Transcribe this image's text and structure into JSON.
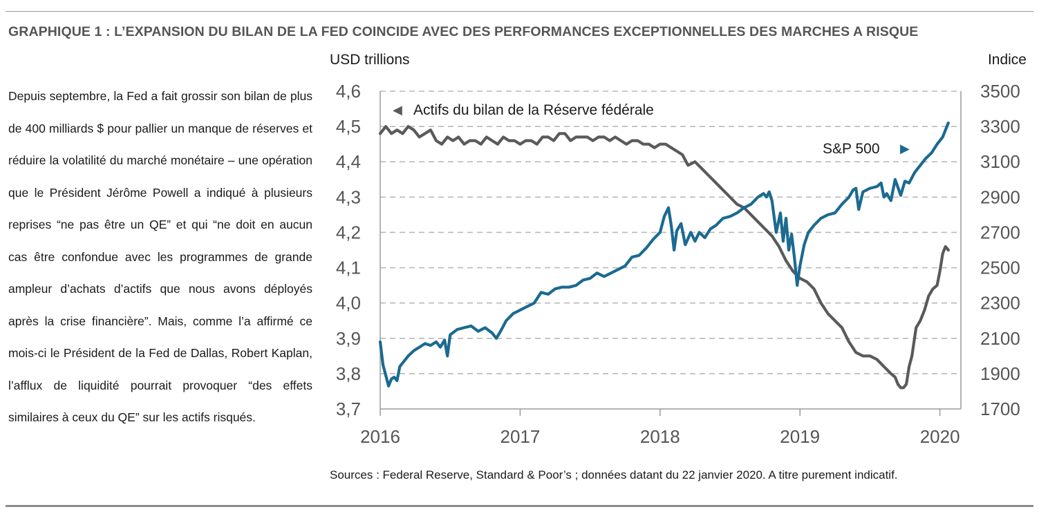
{
  "title": "GRAPHIQUE 1 : L’EXPANSION DU BILAN DE LA FED COINCIDE AVEC DES PERFORMANCES  EXCEPTIONNELLES DES MARCHES A RISQUE",
  "body_text": "Depuis septembre, la Fed a fait grossir son bilan de plus de 400 milliards $ pour pallier un manque de réserves et réduire la volatilité du marché monétaire – une opération que le Président Jérôme Powell a indiqué à plusieurs reprises “ne pas être un QE” et qui “ne doit en aucun cas être confondue avec les programmes de grande ampleur d’achats d’actifs que nous avons déployés après la crise financière”. Mais, comme l’a affirmé ce mois-ci le Président de la Fed de Dallas, Robert Kaplan, l’afflux de liquidité pourrait provoquer “des effets similaires à ceux du QE” sur les actifs risqués.",
  "source": "Sources : Federal Reserve, Standard & Poor’s ; données datant du 22 janvier 2020. A titre purement indicatif.",
  "chart_data": {
    "type": "line",
    "left_axis_label": "USD trillions",
    "right_axis_label": "Indice",
    "x_ticks": [
      "2016",
      "2017",
      "2018",
      "2019",
      "2020"
    ],
    "x_range": [
      2016.0,
      2020.15
    ],
    "y_left_ticks": [
      "4,6",
      "4,5",
      "4,4",
      "4,3",
      "4,2",
      "4,1",
      "4,0",
      "3,9",
      "3,8",
      "3,7"
    ],
    "y_left_range": [
      3.7,
      4.6
    ],
    "y_right_ticks": [
      "3500",
      "3300",
      "3100",
      "2900",
      "2700",
      "2500",
      "2300",
      "2100",
      "1900",
      "1700"
    ],
    "y_right_range": [
      1700,
      3500
    ],
    "grid": true,
    "series": [
      {
        "name": "Actifs du bilan de la Réserve fédérale",
        "axis": "left",
        "color": "#5a5a5a",
        "label": "Actifs du bilan de la Réserve fédérale",
        "label_marker": "◀",
        "x": [
          2016.0,
          2016.04,
          2016.08,
          2016.12,
          2016.16,
          2016.2,
          2016.24,
          2016.28,
          2016.32,
          2016.36,
          2016.4,
          2016.44,
          2016.48,
          2016.52,
          2016.56,
          2016.6,
          2016.64,
          2016.68,
          2016.72,
          2016.76,
          2016.8,
          2016.84,
          2016.88,
          2016.92,
          2016.96,
          2017.0,
          2017.04,
          2017.08,
          2017.12,
          2017.16,
          2017.2,
          2017.24,
          2017.28,
          2017.32,
          2017.36,
          2017.4,
          2017.44,
          2017.48,
          2017.52,
          2017.56,
          2017.6,
          2017.64,
          2017.68,
          2017.72,
          2017.76,
          2017.8,
          2017.84,
          2017.88,
          2017.92,
          2017.96,
          2018.0,
          2018.04,
          2018.08,
          2018.12,
          2018.16,
          2018.2,
          2018.25,
          2018.3,
          2018.35,
          2018.4,
          2018.45,
          2018.5,
          2018.55,
          2018.6,
          2018.65,
          2018.7,
          2018.75,
          2018.8,
          2018.85,
          2018.9,
          2018.95,
          2019.0,
          2019.05,
          2019.1,
          2019.15,
          2019.2,
          2019.25,
          2019.3,
          2019.35,
          2019.4,
          2019.45,
          2019.5,
          2019.55,
          2019.6,
          2019.65,
          2019.68,
          2019.7,
          2019.72,
          2019.74,
          2019.76,
          2019.78,
          2019.8,
          2019.83,
          2019.86,
          2019.89,
          2019.92,
          2019.95,
          2019.98,
          2020.0,
          2020.02,
          2020.04,
          2020.06
        ],
        "values": [
          4.48,
          4.5,
          4.48,
          4.49,
          4.48,
          4.5,
          4.49,
          4.47,
          4.48,
          4.49,
          4.46,
          4.45,
          4.47,
          4.46,
          4.47,
          4.45,
          4.46,
          4.46,
          4.45,
          4.47,
          4.46,
          4.45,
          4.47,
          4.46,
          4.46,
          4.45,
          4.46,
          4.46,
          4.45,
          4.47,
          4.47,
          4.46,
          4.48,
          4.48,
          4.46,
          4.47,
          4.47,
          4.47,
          4.46,
          4.47,
          4.47,
          4.46,
          4.47,
          4.46,
          4.45,
          4.46,
          4.46,
          4.45,
          4.45,
          4.44,
          4.45,
          4.45,
          4.44,
          4.43,
          4.42,
          4.39,
          4.4,
          4.38,
          4.36,
          4.34,
          4.32,
          4.3,
          4.28,
          4.27,
          4.25,
          4.23,
          4.21,
          4.19,
          4.16,
          4.12,
          4.09,
          4.07,
          4.06,
          4.04,
          4.0,
          3.97,
          3.95,
          3.93,
          3.89,
          3.86,
          3.85,
          3.85,
          3.84,
          3.82,
          3.8,
          3.79,
          3.77,
          3.76,
          3.76,
          3.77,
          3.82,
          3.85,
          3.93,
          3.95,
          3.98,
          4.02,
          4.04,
          4.05,
          4.09,
          4.14,
          4.16,
          4.15
        ]
      },
      {
        "name": "S&P 500",
        "axis": "right",
        "color": "#1b6a90",
        "label": "S&P 500",
        "label_marker": "▶",
        "x": [
          2016.0,
          2016.02,
          2016.04,
          2016.06,
          2016.08,
          2016.1,
          2016.12,
          2016.14,
          2016.16,
          2016.2,
          2016.24,
          2016.28,
          2016.32,
          2016.36,
          2016.4,
          2016.43,
          2016.46,
          2016.48,
          2016.5,
          2016.55,
          2016.6,
          2016.65,
          2016.7,
          2016.75,
          2016.8,
          2016.83,
          2016.86,
          2016.9,
          2016.95,
          2017.0,
          2017.05,
          2017.1,
          2017.15,
          2017.2,
          2017.25,
          2017.3,
          2017.35,
          2017.4,
          2017.45,
          2017.5,
          2017.55,
          2017.6,
          2017.65,
          2017.7,
          2017.75,
          2017.8,
          2017.85,
          2017.9,
          2017.95,
          2018.0,
          2018.03,
          2018.06,
          2018.08,
          2018.1,
          2018.12,
          2018.15,
          2018.18,
          2018.22,
          2018.25,
          2018.28,
          2018.32,
          2018.36,
          2018.4,
          2018.45,
          2018.5,
          2018.55,
          2018.6,
          2018.65,
          2018.7,
          2018.74,
          2018.76,
          2018.78,
          2018.8,
          2018.83,
          2018.86,
          2018.88,
          2018.9,
          2018.92,
          2018.94,
          2018.96,
          2018.98,
          2019.0,
          2019.03,
          2019.06,
          2019.1,
          2019.15,
          2019.2,
          2019.25,
          2019.3,
          2019.35,
          2019.38,
          2019.4,
          2019.42,
          2019.45,
          2019.5,
          2019.55,
          2019.58,
          2019.6,
          2019.62,
          2019.65,
          2019.68,
          2019.72,
          2019.75,
          2019.78,
          2019.82,
          2019.86,
          2019.9,
          2019.94,
          2019.98,
          2020.02,
          2020.06
        ],
        "values": [
          2080,
          1950,
          1890,
          1830,
          1870,
          1880,
          1860,
          1940,
          1960,
          2000,
          2030,
          2050,
          2070,
          2060,
          2080,
          2050,
          2090,
          2000,
          2120,
          2150,
          2160,
          2170,
          2140,
          2160,
          2130,
          2100,
          2140,
          2200,
          2240,
          2260,
          2280,
          2300,
          2360,
          2350,
          2380,
          2390,
          2390,
          2400,
          2430,
          2440,
          2470,
          2450,
          2470,
          2490,
          2510,
          2560,
          2570,
          2610,
          2660,
          2700,
          2790,
          2840,
          2740,
          2600,
          2710,
          2750,
          2630,
          2700,
          2650,
          2700,
          2670,
          2720,
          2740,
          2780,
          2790,
          2810,
          2840,
          2860,
          2900,
          2920,
          2900,
          2930,
          2880,
          2700,
          2810,
          2650,
          2780,
          2600,
          2690,
          2560,
          2400,
          2510,
          2630,
          2700,
          2740,
          2780,
          2800,
          2810,
          2860,
          2900,
          2940,
          2950,
          2830,
          2930,
          2950,
          2960,
          2980,
          2900,
          2920,
          2880,
          3000,
          2910,
          2990,
          2980,
          3040,
          3080,
          3120,
          3150,
          3200,
          3240,
          3320
        ]
      }
    ]
  }
}
